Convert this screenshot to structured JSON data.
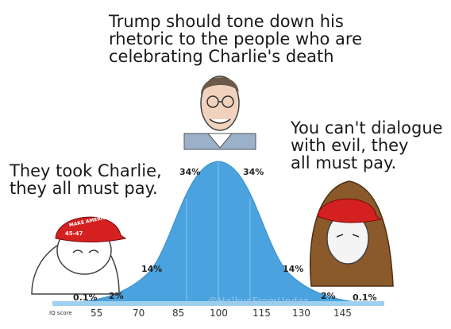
{
  "captions": {
    "top": "Trump should tone down his\nrhetoric to the people who are\ncelebrating Charlie's death",
    "left": "They took Charlie,\nthey all must pay.",
    "right": "You can't dialogue\nwith evil, they\nall must pay."
  },
  "hat_text": "MAKE AMERICA GREAT AGAIN",
  "hat_badge": "45-47",
  "chart": {
    "percent_labels": [
      "0.1%",
      "2%",
      "14%",
      "34%",
      "34%",
      "14%",
      "2%",
      "0.1%"
    ],
    "iq_label": "IQ score",
    "ticks": [
      "55",
      "70",
      "85",
      "100",
      "115",
      "130",
      "145"
    ],
    "watermark": "@HalkusFromUnder"
  },
  "chart_data": {
    "type": "area",
    "xlabel": "IQ score",
    "x": [
      55,
      70,
      85,
      100,
      115,
      130,
      145
    ],
    "segment_percents": [
      0.1,
      2,
      14,
      34,
      34,
      14,
      2,
      0.1
    ]
  },
  "colors": {
    "curve": "#4aa3df",
    "curve_light": "#9fd0ef",
    "hat_red": "#d42020",
    "hood_brown": "#8a5a2b"
  }
}
